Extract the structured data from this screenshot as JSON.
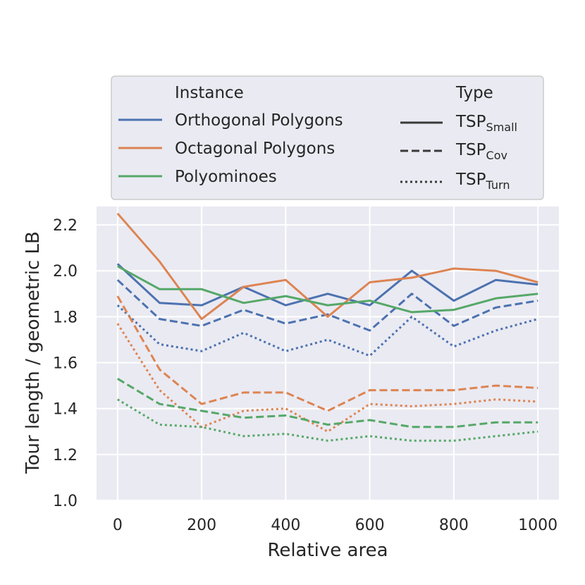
{
  "chart_data": {
    "type": "line",
    "xlabel": "Relative area",
    "ylabel": "Tour length / geometric LB",
    "xlim": [
      -50,
      1050
    ],
    "ylim": [
      1.0,
      2.28
    ],
    "xticks": [
      "0",
      "200",
      "400",
      "600",
      "800",
      "1000"
    ],
    "yticks": [
      "1.0",
      "1.2",
      "1.4",
      "1.6",
      "1.8",
      "2.0",
      "2.2"
    ],
    "grid": true,
    "legend_position": "top",
    "x": [
      0,
      100,
      200,
      300,
      400,
      500,
      600,
      700,
      800,
      900,
      1000
    ],
    "instances": [
      {
        "name": "Orthogonal Polygons",
        "color": "#4c72b0"
      },
      {
        "name": "Octagonal Polygons",
        "color": "#dd8452"
      },
      {
        "name": "Polyominoes",
        "color": "#55a868"
      }
    ],
    "types": [
      {
        "base": "TSP",
        "sub": "Small",
        "style": "solid"
      },
      {
        "base": "TSP",
        "sub": "Cov",
        "style": "dashed"
      },
      {
        "base": "TSP",
        "sub": "Turn",
        "style": "dotted"
      }
    ],
    "legend": {
      "instance_title": "Instance",
      "type_title": "Type"
    },
    "series": [
      {
        "instance": 0,
        "type": 0,
        "values": [
          2.03,
          1.86,
          1.85,
          1.93,
          1.85,
          1.9,
          1.85,
          2.0,
          1.87,
          1.96,
          1.94
        ]
      },
      {
        "instance": 0,
        "type": 1,
        "values": [
          1.96,
          1.79,
          1.76,
          1.83,
          1.77,
          1.81,
          1.74,
          1.9,
          1.76,
          1.84,
          1.87
        ]
      },
      {
        "instance": 0,
        "type": 2,
        "values": [
          1.85,
          1.68,
          1.65,
          1.73,
          1.65,
          1.7,
          1.63,
          1.8,
          1.67,
          1.74,
          1.79
        ]
      },
      {
        "instance": 1,
        "type": 0,
        "values": [
          2.25,
          2.04,
          1.79,
          1.93,
          1.96,
          1.8,
          1.95,
          1.97,
          2.01,
          2.0,
          1.95
        ]
      },
      {
        "instance": 1,
        "type": 1,
        "values": [
          1.89,
          1.57,
          1.42,
          1.47,
          1.47,
          1.39,
          1.48,
          1.48,
          1.48,
          1.5,
          1.49
        ]
      },
      {
        "instance": 1,
        "type": 2,
        "values": [
          1.77,
          1.48,
          1.32,
          1.39,
          1.4,
          1.3,
          1.42,
          1.41,
          1.42,
          1.44,
          1.43
        ]
      },
      {
        "instance": 2,
        "type": 0,
        "values": [
          2.02,
          1.92,
          1.92,
          1.86,
          1.89,
          1.85,
          1.87,
          1.82,
          1.83,
          1.88,
          1.9
        ]
      },
      {
        "instance": 2,
        "type": 1,
        "values": [
          1.53,
          1.42,
          1.39,
          1.36,
          1.37,
          1.33,
          1.35,
          1.32,
          1.32,
          1.34,
          1.34
        ]
      },
      {
        "instance": 2,
        "type": 2,
        "values": [
          1.44,
          1.33,
          1.32,
          1.28,
          1.29,
          1.26,
          1.28,
          1.26,
          1.26,
          1.28,
          1.3
        ]
      }
    ]
  }
}
